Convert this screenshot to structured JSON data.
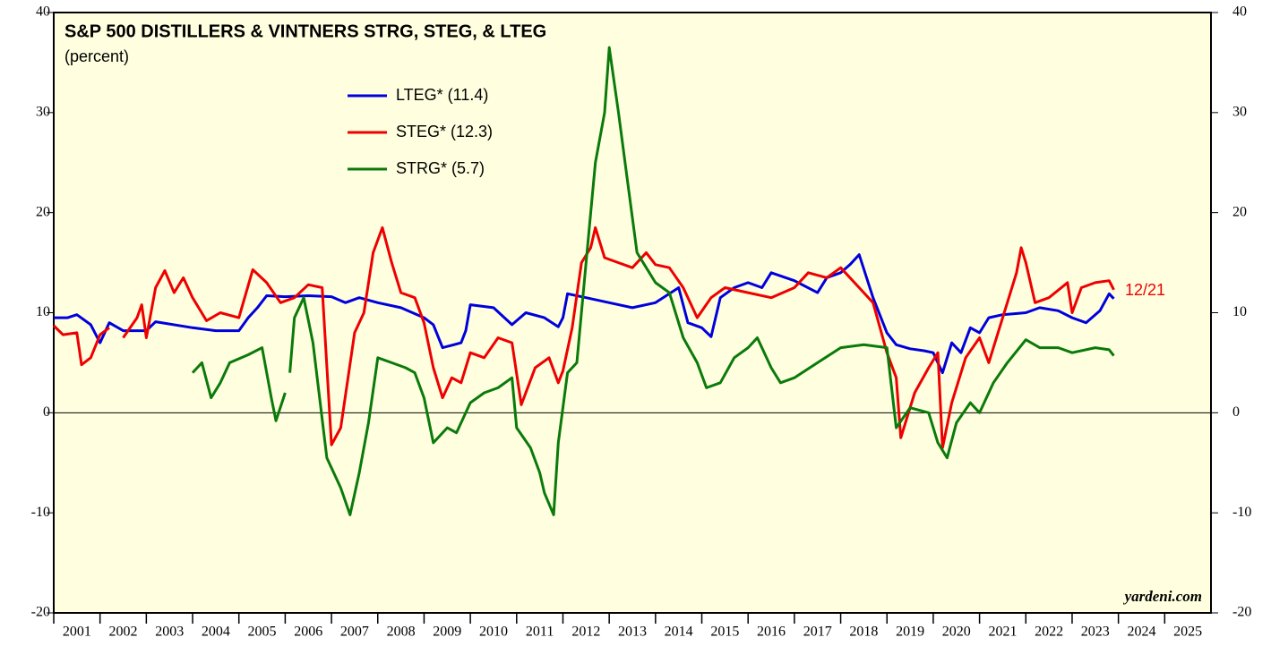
{
  "chart_data": {
    "type": "line",
    "title": "S&P 500 DISTILLERS & VINTNERS STRG, STEG, & LTEG",
    "subtitle": "(percent)",
    "annotation": "12/21",
    "source": "yardeni.com",
    "xlim": [
      2001,
      2026
    ],
    "xticks": [
      2001,
      2002,
      2003,
      2004,
      2005,
      2006,
      2007,
      2008,
      2009,
      2010,
      2011,
      2012,
      2013,
      2014,
      2015,
      2016,
      2017,
      2018,
      2019,
      2020,
      2021,
      2022,
      2023,
      2024,
      2025
    ],
    "ylim": [
      -20,
      40
    ],
    "yticks": [
      -20,
      -10,
      0,
      10,
      20,
      30,
      40
    ],
    "series": [
      {
        "name": "LTEG* (11.4)",
        "color": "#0000dd",
        "x": [
          2001.0,
          2001.3,
          2001.5,
          2001.8,
          2002.0,
          2002.2,
          2002.5,
          2003.0,
          2003.2,
          2004.0,
          2004.5,
          2005.0,
          2005.2,
          2005.4,
          2005.6,
          2006.0,
          2006.5,
          2007.0,
          2007.3,
          2007.6,
          2008.0,
          2008.5,
          2009.0,
          2009.2,
          2009.4,
          2009.8,
          2009.9,
          2010.0,
          2010.5,
          2010.9,
          2011.2,
          2011.6,
          2011.9,
          2012.0,
          2012.1,
          2012.5,
          2013.0,
          2013.5,
          2014.0,
          2014.5,
          2014.7,
          2015.0,
          2015.2,
          2015.4,
          2015.7,
          2016.0,
          2016.3,
          2016.5,
          2017.0,
          2017.5,
          2017.7,
          2018.0,
          2018.2,
          2018.4,
          2018.7,
          2019.0,
          2019.2,
          2019.5,
          2019.8,
          2020.0,
          2020.2,
          2020.4,
          2020.6,
          2020.8,
          2021.0,
          2021.2,
          2021.5,
          2022.0,
          2022.3,
          2022.7,
          2023.0,
          2023.3,
          2023.6,
          2023.8,
          2023.9
        ],
        "values": [
          9.5,
          9.5,
          9.8,
          8.8,
          7.0,
          9.0,
          8.2,
          8.2,
          9.1,
          8.5,
          8.2,
          8.2,
          9.5,
          10.5,
          11.7,
          11.6,
          11.7,
          11.6,
          11.0,
          11.5,
          11.0,
          10.5,
          9.5,
          8.8,
          6.5,
          7.0,
          8.2,
          10.8,
          10.5,
          8.8,
          10.0,
          9.5,
          8.6,
          9.5,
          11.9,
          11.5,
          11.0,
          10.5,
          11.0,
          12.5,
          9.0,
          8.5,
          7.6,
          11.5,
          12.5,
          13.0,
          12.5,
          14.0,
          13.2,
          12.0,
          13.5,
          14.0,
          14.8,
          15.8,
          11.5,
          8.0,
          6.8,
          6.4,
          6.2,
          6.0,
          4.0,
          7.0,
          6.0,
          8.5,
          8.0,
          9.5,
          9.8,
          10.0,
          10.5,
          10.2,
          9.5,
          9.0,
          10.2,
          11.9,
          11.4
        ]
      },
      {
        "name": "STEG* (12.3)",
        "color": "#ee0000",
        "x": [
          2001.0,
          2001.2,
          2001.5,
          2001.6,
          2001.8,
          2002.0,
          2002.2,
          2002.3,
          2002.5,
          2002.8,
          2002.9,
          2003.0,
          2003.2,
          2003.4,
          2003.6,
          2003.8,
          2004.0,
          2004.3,
          2004.6,
          2005.0,
          2005.3,
          2005.6,
          2005.9,
          2006.2,
          2006.5,
          2006.8,
          2007.0,
          2007.2,
          2007.5,
          2007.7,
          2007.9,
          2008.1,
          2008.3,
          2008.5,
          2008.8,
          2009.0,
          2009.2,
          2009.4,
          2009.6,
          2009.8,
          2010.0,
          2010.3,
          2010.6,
          2010.9,
          2011.1,
          2011.4,
          2011.7,
          2011.9,
          2012.0,
          2012.2,
          2012.4,
          2012.6,
          2012.7,
          2012.9,
          2013.2,
          2013.5,
          2013.8,
          2014.0,
          2014.3,
          2014.6,
          2014.9,
          2015.2,
          2015.5,
          2016.0,
          2016.5,
          2017.0,
          2017.3,
          2017.7,
          2018.0,
          2018.4,
          2018.7,
          2019.0,
          2019.2,
          2019.3,
          2019.6,
          2019.9,
          2020.1,
          2020.2,
          2020.4,
          2020.7,
          2021.0,
          2021.2,
          2021.6,
          2021.8,
          2021.9,
          2022.0,
          2022.2,
          2022.5,
          2022.9,
          2023.0,
          2023.2,
          2023.5,
          2023.8,
          2023.9
        ],
        "values": [
          8.7,
          7.8,
          8.0,
          4.8,
          5.5,
          7.8,
          8.5,
          null,
          7.5,
          9.5,
          10.8,
          7.5,
          12.5,
          14.2,
          12.0,
          13.5,
          11.5,
          9.2,
          10.0,
          9.5,
          14.3,
          13.0,
          11.0,
          11.5,
          12.8,
          12.5,
          -3.2,
          -1.5,
          8.0,
          10.0,
          16.0,
          18.5,
          15.0,
          12.0,
          11.5,
          9.0,
          4.5,
          1.5,
          3.5,
          3.0,
          6.0,
          5.5,
          7.5,
          7.0,
          0.8,
          4.5,
          5.5,
          3.0,
          4.2,
          8.5,
          15.0,
          16.5,
          18.5,
          15.5,
          15.0,
          14.5,
          16.0,
          14.8,
          14.5,
          12.5,
          9.5,
          11.5,
          12.5,
          12.0,
          11.5,
          12.5,
          14.0,
          13.5,
          14.5,
          12.5,
          11.0,
          6.0,
          3.5,
          -2.5,
          2.0,
          4.5,
          6.0,
          -3.5,
          1.0,
          5.5,
          7.5,
          5.0,
          11.0,
          14.0,
          16.5,
          15.0,
          11.0,
          11.5,
          13.0,
          10.0,
          12.5,
          13.0,
          13.2,
          12.3
        ]
      },
      {
        "name": "STRG* (5.7)",
        "color": "#0a7a0a",
        "x": [
          2004.0,
          2004.2,
          2004.4,
          2004.6,
          2004.8,
          2005.2,
          2005.5,
          2005.7,
          2005.8,
          2006.0,
          2006.05,
          2006.1,
          2006.2,
          2006.4,
          2006.6,
          2006.9,
          2007.2,
          2007.4,
          2007.6,
          2007.8,
          2008.0,
          2008.3,
          2008.6,
          2008.8,
          2009.0,
          2009.2,
          2009.5,
          2009.7,
          2010.0,
          2010.3,
          2010.6,
          2010.9,
          2011.0,
          2011.3,
          2011.5,
          2011.6,
          2011.8,
          2011.9,
          2012.1,
          2012.3,
          2012.5,
          2012.7,
          2012.9,
          2013.0,
          2013.2,
          2013.4,
          2013.6,
          2013.8,
          2014.0,
          2014.3,
          2014.6,
          2014.9,
          2015.1,
          2015.4,
          2015.7,
          2016.0,
          2016.2,
          2016.5,
          2016.7,
          2017.0,
          2017.5,
          2018.0,
          2018.5,
          2019.0,
          2019.2,
          2019.5,
          2019.9,
          2020.1,
          2020.3,
          2020.5,
          2020.8,
          2021.0,
          2021.3,
          2021.6,
          2022.0,
          2022.3,
          2022.7,
          2023.0,
          2023.5,
          2023.8,
          2023.9
        ],
        "values": [
          4.0,
          5.0,
          1.5,
          3.0,
          5.0,
          5.8,
          6.5,
          1.5,
          -0.8,
          2.0,
          null,
          4.0,
          9.5,
          11.5,
          7.0,
          -4.5,
          -7.5,
          -10.2,
          -6.0,
          -1.0,
          5.5,
          5.0,
          4.5,
          4.0,
          1.5,
          -3.0,
          -1.5,
          -2.0,
          1.0,
          2.0,
          2.5,
          3.5,
          -1.5,
          -3.5,
          -6.0,
          -8.0,
          -10.2,
          -3.0,
          4.0,
          5.0,
          15.0,
          25.0,
          30.0,
          36.5,
          30.0,
          23.0,
          16.0,
          14.5,
          13.0,
          12.0,
          7.5,
          5.0,
          2.5,
          3.0,
          5.5,
          6.5,
          7.5,
          4.5,
          3.0,
          3.5,
          5.0,
          6.5,
          6.8,
          6.5,
          -1.5,
          0.5,
          0.0,
          -3.0,
          -4.5,
          -1.0,
          1.0,
          0.0,
          3.0,
          5.0,
          7.3,
          6.5,
          6.5,
          6.0,
          6.5,
          6.3,
          5.7
        ]
      }
    ]
  }
}
